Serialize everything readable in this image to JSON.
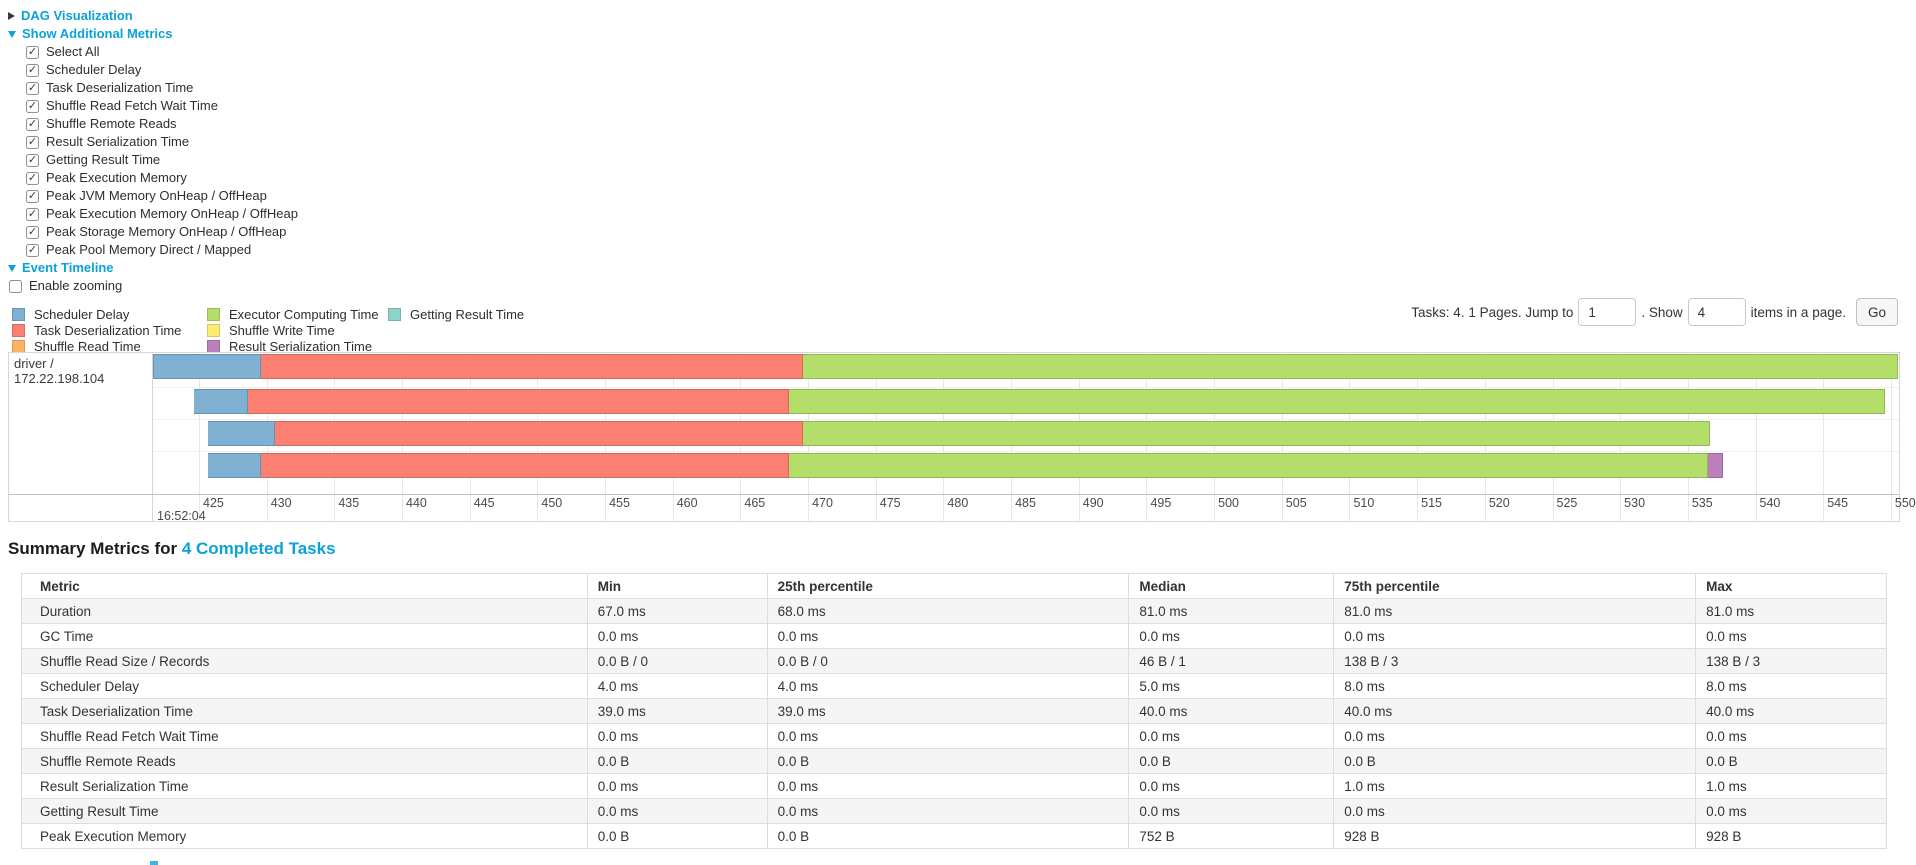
{
  "accent": {
    "link_color": "#0aa2d8",
    "border_color": "#d7d7d7"
  },
  "toggles": {
    "dag": {
      "label": "DAG Visualization",
      "state": "collapsed"
    },
    "metrics": {
      "label": "Show Additional Metrics",
      "state": "expanded"
    },
    "timeline": {
      "label": "Event Timeline",
      "state": "expanded"
    }
  },
  "metrics_checkboxes": [
    {
      "label": "Select All",
      "checked": true
    },
    {
      "label": "Scheduler Delay",
      "checked": true
    },
    {
      "label": "Task Deserialization Time",
      "checked": true
    },
    {
      "label": "Shuffle Read Fetch Wait Time",
      "checked": true
    },
    {
      "label": "Shuffle Remote Reads",
      "checked": true
    },
    {
      "label": "Result Serialization Time",
      "checked": true
    },
    {
      "label": "Getting Result Time",
      "checked": true
    },
    {
      "label": "Peak Execution Memory",
      "checked": true
    },
    {
      "label": "Peak JVM Memory OnHeap / OffHeap",
      "checked": true
    },
    {
      "label": "Peak Execution Memory OnHeap / OffHeap",
      "checked": true
    },
    {
      "label": "Peak Storage Memory OnHeap / OffHeap",
      "checked": true
    },
    {
      "label": "Peak Pool Memory Direct / Mapped",
      "checked": true
    }
  ],
  "enable_zooming": {
    "label": "Enable zooming",
    "checked": false
  },
  "legend": {
    "columns": [
      [
        {
          "key": "scheduler_delay",
          "label": "Scheduler Delay",
          "color": "#80B1D3"
        },
        {
          "key": "deserialization",
          "label": "Task Deserialization Time",
          "color": "#FB8072"
        },
        {
          "key": "shuffle_read",
          "label": "Shuffle Read Time",
          "color": "#FDB462"
        }
      ],
      [
        {
          "key": "executor_computing",
          "label": "Executor Computing Time",
          "color": "#B3DE69"
        },
        {
          "key": "shuffle_write",
          "label": "Shuffle Write Time",
          "color": "#FFED6F"
        },
        {
          "key": "result_serialization",
          "label": "Result Serialization Time",
          "color": "#BC80BD"
        }
      ],
      [
        {
          "key": "getting_result",
          "label": "Getting Result Time",
          "color": "#8DD3C7"
        }
      ]
    ]
  },
  "pagination": {
    "prefix": "Tasks: 4. 1 Pages. Jump to",
    "jump_value": "1",
    "mid": ". Show",
    "show_value": "4",
    "suffix": "items in a page.",
    "go_label": "Go"
  },
  "chart_data": {
    "type": "timeline-gantt",
    "group_label": "driver / 172.22.198.104",
    "major_label": "16:52:04",
    "axis_window": {
      "min": 421.6,
      "max": 550.6
    },
    "ticks": [
      425,
      430,
      435,
      440,
      445,
      450,
      455,
      460,
      465,
      470,
      475,
      480,
      485,
      490,
      495,
      500,
      505,
      510,
      515,
      520,
      525,
      530,
      535,
      540,
      545,
      550
    ],
    "colors": {
      "scheduler_delay": "#80B1D3",
      "deserialization": "#FB8072",
      "shuffle_read": "#FDB462",
      "executor_computing": "#B3DE69",
      "shuffle_write": "#FFED6F",
      "result_serialization": "#BC80BD",
      "getting_result": "#8DD3C7"
    },
    "tasks": [
      {
        "segments": [
          {
            "type": "scheduler_delay",
            "start": 421.6,
            "end": 429.6
          },
          {
            "type": "deserialization",
            "start": 429.6,
            "end": 469.6
          },
          {
            "type": "executor_computing",
            "start": 469.6,
            "end": 550.5
          }
        ]
      },
      {
        "segments": [
          {
            "type": "scheduler_delay",
            "start": 424.6,
            "end": 428.6
          },
          {
            "type": "deserialization",
            "start": 428.6,
            "end": 468.6
          },
          {
            "type": "executor_computing",
            "start": 468.6,
            "end": 549.6
          }
        ]
      },
      {
        "segments": [
          {
            "type": "scheduler_delay",
            "start": 425.7,
            "end": 430.6
          },
          {
            "type": "deserialization",
            "start": 430.6,
            "end": 469.6
          },
          {
            "type": "executor_computing",
            "start": 469.6,
            "end": 536.6
          }
        ]
      },
      {
        "segments": [
          {
            "type": "scheduler_delay",
            "start": 425.7,
            "end": 429.6
          },
          {
            "type": "deserialization",
            "start": 429.6,
            "end": 468.6
          },
          {
            "type": "executor_computing",
            "start": 468.6,
            "end": 536.5
          },
          {
            "type": "result_serialization",
            "start": 536.5,
            "end": 537.6
          }
        ]
      }
    ]
  },
  "summary": {
    "heading_prefix": "Summary Metrics for ",
    "heading_link": "4 Completed Tasks",
    "table": {
      "headers": [
        "Metric",
        "Min",
        "25th percentile",
        "Median",
        "75th percentile",
        "Max"
      ],
      "rows": [
        {
          "metric": "Duration",
          "values": [
            "67.0 ms",
            "68.0 ms",
            "81.0 ms",
            "81.0 ms",
            "81.0 ms"
          ]
        },
        {
          "metric": "GC Time",
          "values": [
            "0.0 ms",
            "0.0 ms",
            "0.0 ms",
            "0.0 ms",
            "0.0 ms"
          ]
        },
        {
          "metric": "Shuffle Read Size / Records",
          "values": [
            "0.0 B / 0",
            "0.0 B / 0",
            "46 B / 1",
            "138 B / 3",
            "138 B / 3"
          ]
        },
        {
          "metric": "Scheduler Delay",
          "values": [
            "4.0 ms",
            "4.0 ms",
            "5.0 ms",
            "8.0 ms",
            "8.0 ms"
          ]
        },
        {
          "metric": "Task Deserialization Time",
          "values": [
            "39.0 ms",
            "39.0 ms",
            "40.0 ms",
            "40.0 ms",
            "40.0 ms"
          ]
        },
        {
          "metric": "Shuffle Read Fetch Wait Time",
          "values": [
            "0.0 ms",
            "0.0 ms",
            "0.0 ms",
            "0.0 ms",
            "0.0 ms"
          ]
        },
        {
          "metric": "Shuffle Remote Reads",
          "values": [
            "0.0 B",
            "0.0 B",
            "0.0 B",
            "0.0 B",
            "0.0 B"
          ]
        },
        {
          "metric": "Result Serialization Time",
          "values": [
            "0.0 ms",
            "0.0 ms",
            "0.0 ms",
            "1.0 ms",
            "1.0 ms"
          ]
        },
        {
          "metric": "Getting Result Time",
          "values": [
            "0.0 ms",
            "0.0 ms",
            "0.0 ms",
            "0.0 ms",
            "0.0 ms"
          ]
        },
        {
          "metric": "Peak Execution Memory",
          "values": [
            "0.0 B",
            "0.0 B",
            "752 B",
            "928 B",
            "928 B"
          ]
        }
      ]
    }
  }
}
